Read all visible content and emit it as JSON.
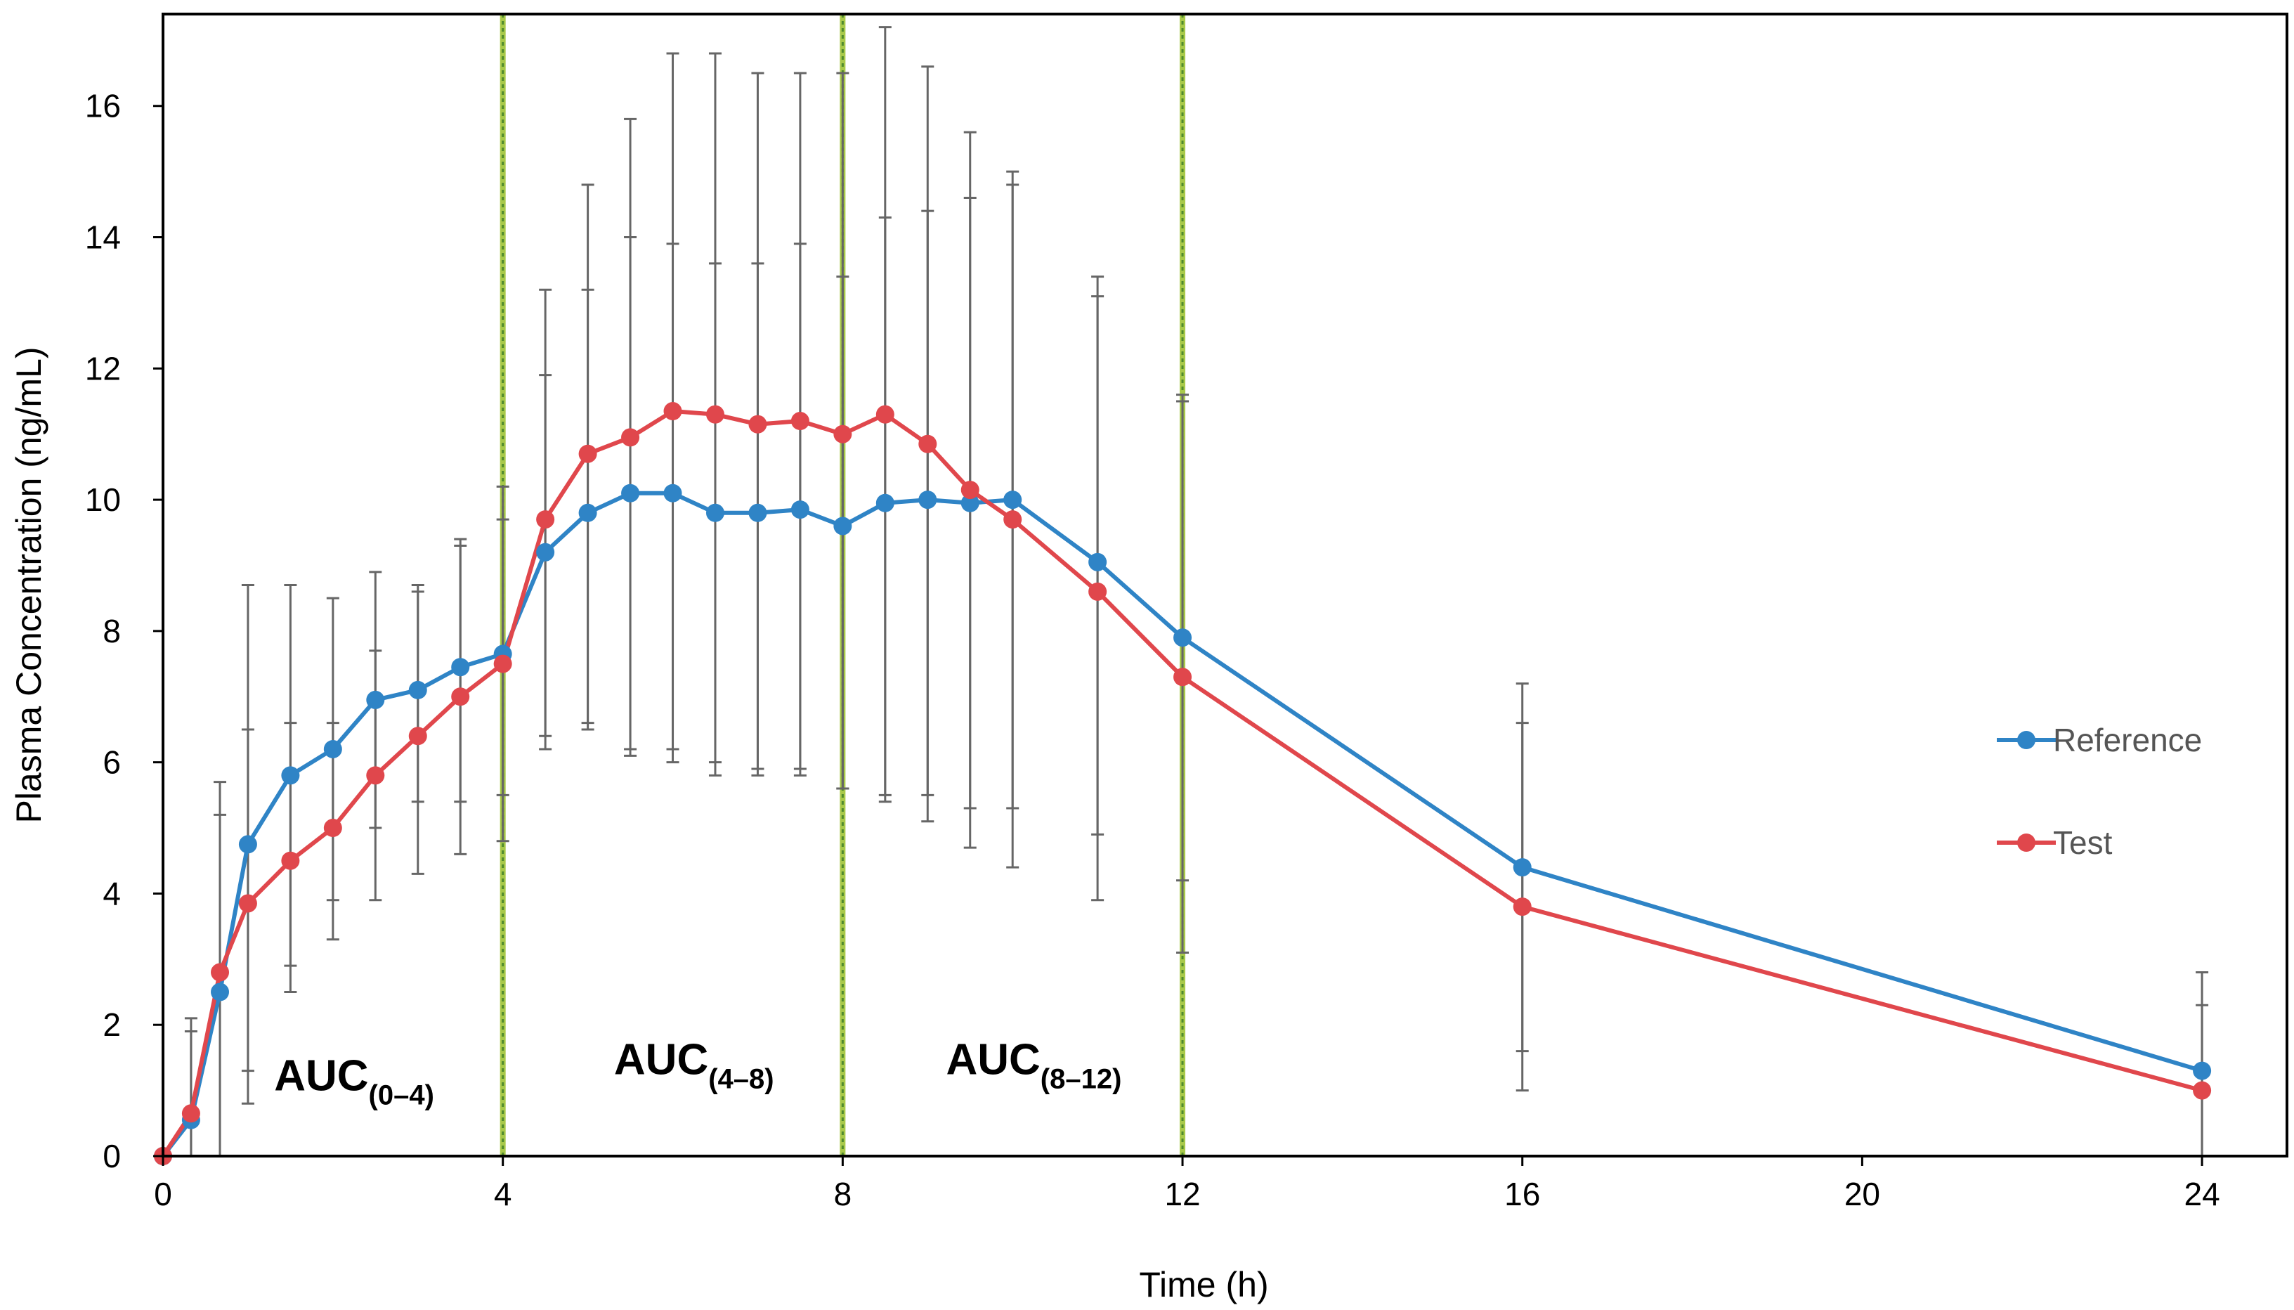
{
  "chart_data": {
    "type": "line",
    "xlabel": "Time (h)",
    "ylabel": "Plasma Concentration (ng/mL)",
    "xlim": [
      0,
      25
    ],
    "ylim": [
      0,
      17.4
    ],
    "x_ticks": [
      0,
      4,
      8,
      12,
      16,
      20,
      24
    ],
    "y_ticks": [
      0,
      2,
      4,
      6,
      8,
      10,
      12,
      14,
      16
    ],
    "grid": false,
    "legend_position": "right",
    "vertical_lines": [
      4,
      8,
      12
    ],
    "annotations": [
      {
        "main": "AUC",
        "sub": "(0–4)",
        "x": 2.25,
        "y": 1.0
      },
      {
        "main": "AUC",
        "sub": "(4–8)",
        "x": 6.25,
        "y": 1.25
      },
      {
        "main": "AUC",
        "sub": "(8–12)",
        "x": 10.25,
        "y": 1.25
      }
    ],
    "series": [
      {
        "name": "Reference",
        "color": "#2f84c6",
        "points": [
          {
            "x": 0,
            "y": 0.0,
            "lo": null,
            "hi": null
          },
          {
            "x": 0.33,
            "y": 0.55,
            "lo": null,
            "hi": 1.9
          },
          {
            "x": 0.67,
            "y": 2.5,
            "lo": null,
            "hi": 5.2
          },
          {
            "x": 1.0,
            "y": 4.75,
            "lo": 1.3,
            "hi": 6.5
          },
          {
            "x": 1.5,
            "y": 5.8,
            "lo": 2.9,
            "hi": 6.6
          },
          {
            "x": 2.0,
            "y": 6.2,
            "lo": 3.9,
            "hi": 6.6
          },
          {
            "x": 2.5,
            "y": 6.95,
            "lo": 5.0,
            "hi": 7.7
          },
          {
            "x": 3.0,
            "y": 7.1,
            "lo": 5.4,
            "hi": 8.6
          },
          {
            "x": 3.5,
            "y": 7.45,
            "lo": 5.4,
            "hi": 9.4
          },
          {
            "x": 4.0,
            "y": 7.65,
            "lo": 5.5,
            "hi": 9.7
          },
          {
            "x": 4.5,
            "y": 9.2,
            "lo": 6.4,
            "hi": 11.9
          },
          {
            "x": 5.0,
            "y": 9.8,
            "lo": 6.5,
            "hi": 13.2
          },
          {
            "x": 5.5,
            "y": 10.1,
            "lo": 6.2,
            "hi": 14.0
          },
          {
            "x": 6.0,
            "y": 10.1,
            "lo": 6.2,
            "hi": 13.9
          },
          {
            "x": 6.5,
            "y": 9.8,
            "lo": 6.0,
            "hi": 13.6
          },
          {
            "x": 7.0,
            "y": 9.8,
            "lo": 5.9,
            "hi": 13.6
          },
          {
            "x": 7.5,
            "y": 9.85,
            "lo": 5.9,
            "hi": 13.9
          },
          {
            "x": 8.0,
            "y": 9.6,
            "lo": 5.6,
            "hi": 13.4
          },
          {
            "x": 8.5,
            "y": 9.95,
            "lo": 5.5,
            "hi": 14.3
          },
          {
            "x": 9.0,
            "y": 10.0,
            "lo": 5.5,
            "hi": 14.4
          },
          {
            "x": 9.5,
            "y": 9.95,
            "lo": 5.3,
            "hi": 14.6
          },
          {
            "x": 10.0,
            "y": 10.0,
            "lo": 5.3,
            "hi": 14.8
          },
          {
            "x": 11.0,
            "y": 9.05,
            "lo": 4.9,
            "hi": 13.1
          },
          {
            "x": 12.0,
            "y": 7.9,
            "lo": 4.2,
            "hi": 11.6
          },
          {
            "x": 16.0,
            "y": 4.4,
            "lo": 1.6,
            "hi": 7.2
          },
          {
            "x": 24.0,
            "y": 1.3,
            "lo": null,
            "hi": 2.3
          }
        ]
      },
      {
        "name": "Test",
        "color": "#e0474c",
        "points": [
          {
            "x": 0,
            "y": 0.0,
            "lo": null,
            "hi": null
          },
          {
            "x": 0.33,
            "y": 0.65,
            "lo": null,
            "hi": 2.1
          },
          {
            "x": 0.67,
            "y": 2.8,
            "lo": null,
            "hi": 5.7
          },
          {
            "x": 1.0,
            "y": 3.85,
            "lo": 0.8,
            "hi": 8.7
          },
          {
            "x": 1.5,
            "y": 4.5,
            "lo": 2.5,
            "hi": 8.7
          },
          {
            "x": 2.0,
            "y": 5.0,
            "lo": 3.3,
            "hi": 8.5
          },
          {
            "x": 2.5,
            "y": 5.8,
            "lo": 3.9,
            "hi": 8.9
          },
          {
            "x": 3.0,
            "y": 6.4,
            "lo": 4.3,
            "hi": 8.7
          },
          {
            "x": 3.5,
            "y": 7.0,
            "lo": 4.6,
            "hi": 9.3
          },
          {
            "x": 4.0,
            "y": 7.5,
            "lo": 4.8,
            "hi": 10.2
          },
          {
            "x": 4.5,
            "y": 9.7,
            "lo": 6.2,
            "hi": 13.2
          },
          {
            "x": 5.0,
            "y": 10.7,
            "lo": 6.6,
            "hi": 14.8
          },
          {
            "x": 5.5,
            "y": 10.95,
            "lo": 6.1,
            "hi": 15.8
          },
          {
            "x": 6.0,
            "y": 11.35,
            "lo": 6.0,
            "hi": 16.8
          },
          {
            "x": 6.5,
            "y": 11.3,
            "lo": 5.8,
            "hi": 16.8
          },
          {
            "x": 7.0,
            "y": 11.15,
            "lo": 5.8,
            "hi": 16.5
          },
          {
            "x": 7.5,
            "y": 11.2,
            "lo": 5.8,
            "hi": 16.5
          },
          {
            "x": 8.0,
            "y": 11.0,
            "lo": 5.6,
            "hi": 16.5
          },
          {
            "x": 8.5,
            "y": 11.3,
            "lo": 5.4,
            "hi": 17.2
          },
          {
            "x": 9.0,
            "y": 10.85,
            "lo": 5.1,
            "hi": 16.6
          },
          {
            "x": 9.5,
            "y": 10.15,
            "lo": 4.7,
            "hi": 15.6
          },
          {
            "x": 10.0,
            "y": 9.7,
            "lo": 4.4,
            "hi": 15.0
          },
          {
            "x": 11.0,
            "y": 8.6,
            "lo": 3.9,
            "hi": 13.4
          },
          {
            "x": 12.0,
            "y": 7.3,
            "lo": 3.1,
            "hi": 11.5
          },
          {
            "x": 16.0,
            "y": 3.8,
            "lo": 1.0,
            "hi": 6.6
          },
          {
            "x": 24.0,
            "y": 1.0,
            "lo": null,
            "hi": 2.8
          }
        ]
      }
    ]
  }
}
